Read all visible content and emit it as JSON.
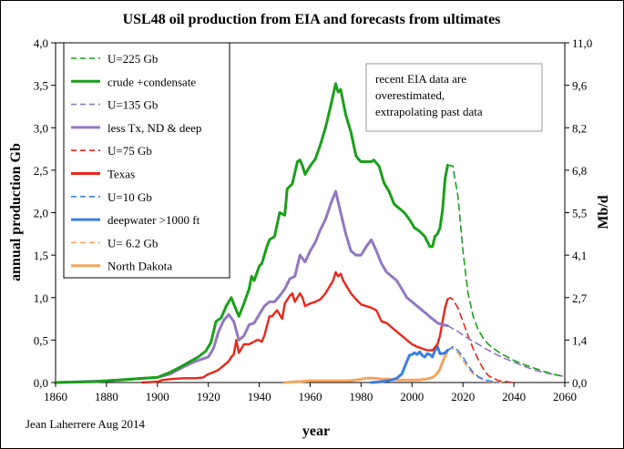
{
  "chart_data": {
    "type": "line",
    "title": "USL48 oil production from EIA and forecasts from ultimates",
    "xlabel": "year",
    "ylabel": "annual production Gb",
    "y2label": "Mb/d",
    "xlim": [
      1860,
      2060
    ],
    "ylim": [
      0,
      4
    ],
    "y2lim": [
      0,
      11
    ],
    "x_ticks": [
      "1860",
      "1880",
      "1900",
      "1920",
      "1940",
      "1960",
      "1980",
      "2000",
      "2020",
      "2040",
      "2060"
    ],
    "y_ticks": [
      "0,0",
      "0,5",
      "1,0",
      "1,5",
      "2,0",
      "2,5",
      "3,0",
      "3,5",
      "4,0"
    ],
    "y2_ticks": [
      "0,0",
      "1,4",
      "2,7",
      "4,1",
      "5,5",
      "6,8",
      "8,2",
      "9,6",
      "11,0"
    ],
    "grid": false,
    "legend_position": "top-left",
    "note": [
      "recent EIA data are",
      "overestimated,",
      "extrapolating past data"
    ],
    "credit": "Jean Laherrere Aug 2014",
    "series": [
      {
        "name": "crude +condensate",
        "color": "#1aa01a",
        "style": "solid",
        "width": 3,
        "x": [
          1860,
          1875,
          1880,
          1885,
          1890,
          1895,
          1900,
          1905,
          1910,
          1913,
          1916,
          1919,
          1921,
          1923,
          1925,
          1927,
          1929,
          1931,
          1932,
          1934,
          1936,
          1937,
          1938,
          1940,
          1941,
          1943,
          1944,
          1945,
          1946,
          1948,
          1950,
          1951,
          1953,
          1955,
          1956,
          1957,
          1958,
          1960,
          1962,
          1964,
          1966,
          1968,
          1970,
          1971,
          1972,
          1974,
          1976,
          1978,
          1979,
          1980,
          1982,
          1984,
          1985,
          1987,
          1989,
          1991,
          1993,
          1995,
          1997,
          1999,
          2001,
          2003,
          2005,
          2007,
          2008,
          2009,
          2010,
          2011,
          2012,
          2013,
          2014
        ],
        "y": [
          0,
          0.01,
          0.02,
          0.03,
          0.04,
          0.05,
          0.06,
          0.12,
          0.2,
          0.25,
          0.3,
          0.37,
          0.47,
          0.72,
          0.76,
          0.9,
          1.0,
          0.85,
          0.78,
          0.93,
          1.1,
          1.25,
          1.2,
          1.37,
          1.4,
          1.6,
          1.68,
          1.7,
          1.72,
          2.0,
          1.97,
          2.28,
          2.34,
          2.6,
          2.62,
          2.55,
          2.45,
          2.55,
          2.63,
          2.8,
          3.0,
          3.25,
          3.52,
          3.42,
          3.45,
          3.15,
          2.95,
          2.67,
          2.63,
          2.6,
          2.6,
          2.6,
          2.62,
          2.55,
          2.35,
          2.25,
          2.1,
          2.05,
          2.0,
          1.92,
          1.82,
          1.78,
          1.72,
          1.6,
          1.6,
          1.72,
          1.75,
          1.82,
          2.03,
          2.4,
          2.56
        ]
      },
      {
        "name": "U=225 Gb",
        "color": "#1aa01a",
        "style": "dashed",
        "width": 1.6,
        "x": [
          2014,
          2016,
          2018,
          2020,
          2022,
          2024,
          2026,
          2028,
          2030,
          2032,
          2035,
          2040,
          2045,
          2050,
          2055,
          2060
        ],
        "y": [
          2.56,
          2.55,
          2.2,
          1.55,
          1.05,
          0.78,
          0.62,
          0.52,
          0.45,
          0.4,
          0.34,
          0.26,
          0.2,
          0.15,
          0.1,
          0.07
        ]
      },
      {
        "name": "less Tx, ND & deep",
        "color": "#9178c0",
        "style": "solid",
        "width": 3,
        "x": [
          1860,
          1880,
          1890,
          1900,
          1905,
          1910,
          1915,
          1920,
          1922,
          1924,
          1926,
          1928,
          1930,
          1932,
          1934,
          1936,
          1938,
          1940,
          1942,
          1944,
          1946,
          1948,
          1950,
          1952,
          1954,
          1956,
          1958,
          1960,
          1962,
          1964,
          1966,
          1968,
          1970,
          1972,
          1974,
          1976,
          1978,
          1980,
          1982,
          1984,
          1986,
          1988,
          1990,
          1992,
          1994,
          1996,
          1998,
          2000,
          2002,
          2004,
          2006,
          2008,
          2010,
          2012,
          2014
        ],
        "y": [
          0,
          0.02,
          0.04,
          0.06,
          0.1,
          0.18,
          0.25,
          0.3,
          0.4,
          0.6,
          0.73,
          0.8,
          0.72,
          0.5,
          0.55,
          0.68,
          0.7,
          0.8,
          0.9,
          0.95,
          0.95,
          1.02,
          1.1,
          1.22,
          1.25,
          1.5,
          1.42,
          1.55,
          1.65,
          1.8,
          1.92,
          2.1,
          2.25,
          2.0,
          1.75,
          1.55,
          1.5,
          1.5,
          1.6,
          1.68,
          1.55,
          1.4,
          1.3,
          1.25,
          1.2,
          1.1,
          1.0,
          0.95,
          0.9,
          0.85,
          0.8,
          0.75,
          0.7,
          0.68,
          0.67
        ]
      },
      {
        "name": "U=135 Gb",
        "color": "#9178c0",
        "style": "dashed",
        "width": 1.6,
        "x": [
          2014,
          2018,
          2022,
          2026,
          2030,
          2035,
          2040,
          2045,
          2050,
          2055,
          2060
        ],
        "y": [
          0.67,
          0.6,
          0.52,
          0.45,
          0.38,
          0.3,
          0.24,
          0.18,
          0.13,
          0.1,
          0.07
        ]
      },
      {
        "name": "Texas",
        "color": "#e8261a",
        "style": "solid",
        "width": 2.4,
        "x": [
          1894,
          1900,
          1902,
          1905,
          1910,
          1915,
          1918,
          1920,
          1922,
          1924,
          1926,
          1928,
          1929,
          1930,
          1931,
          1932,
          1933,
          1934,
          1936,
          1938,
          1939,
          1940,
          1941,
          1942,
          1944,
          1945,
          1947,
          1949,
          1950,
          1952,
          1953,
          1954,
          1955,
          1956,
          1957,
          1958,
          1960,
          1962,
          1964,
          1966,
          1968,
          1969,
          1970,
          1971,
          1972,
          1973,
          1974,
          1976,
          1978,
          1980,
          1982,
          1984,
          1986,
          1988,
          1990,
          1992,
          1994,
          1996,
          1998,
          2000,
          2002,
          2004,
          2006,
          2008,
          2010,
          2011,
          2012,
          2013,
          2014
        ],
        "y": [
          0,
          0.01,
          0.03,
          0.04,
          0.05,
          0.05,
          0.06,
          0.1,
          0.12,
          0.15,
          0.2,
          0.25,
          0.3,
          0.33,
          0.5,
          0.35,
          0.4,
          0.45,
          0.45,
          0.48,
          0.5,
          0.5,
          0.48,
          0.55,
          0.78,
          0.78,
          0.85,
          0.75,
          0.93,
          1.02,
          1.05,
          0.95,
          1.0,
          1.05,
          1.0,
          0.9,
          0.93,
          0.95,
          0.98,
          1.05,
          1.15,
          1.2,
          1.3,
          1.25,
          1.28,
          1.2,
          1.15,
          1.05,
          0.98,
          0.92,
          0.9,
          0.88,
          0.85,
          0.72,
          0.7,
          0.65,
          0.6,
          0.55,
          0.5,
          0.45,
          0.42,
          0.4,
          0.38,
          0.38,
          0.45,
          0.55,
          0.72,
          0.88,
          0.98
        ]
      },
      {
        "name": "U=75 Gb",
        "color": "#e8261a",
        "style": "dashed",
        "width": 1.6,
        "x": [
          2014,
          2015,
          2016,
          2018,
          2020,
          2022,
          2024,
          2026,
          2028,
          2030,
          2034,
          2040
        ],
        "y": [
          0.98,
          1.0,
          0.98,
          0.88,
          0.72,
          0.55,
          0.4,
          0.27,
          0.16,
          0.08,
          0.02,
          0
        ]
      },
      {
        "name": "deepwater >1000 ft",
        "color": "#3a7ee6",
        "style": "solid",
        "width": 3,
        "x": [
          1984,
          1988,
          1990,
          1992,
          1994,
          1996,
          1998,
          1999,
          2000,
          2001,
          2002,
          2003,
          2004,
          2005,
          2006,
          2007,
          2008,
          2009,
          2010,
          2011,
          2012,
          2013,
          2014
        ],
        "y": [
          0,
          0.01,
          0.02,
          0.03,
          0.05,
          0.1,
          0.25,
          0.32,
          0.33,
          0.35,
          0.33,
          0.36,
          0.32,
          0.3,
          0.34,
          0.33,
          0.3,
          0.38,
          0.42,
          0.34,
          0.34,
          0.35,
          0.38
        ]
      },
      {
        "name": "U=10 Gb",
        "color": "#3a7ee6",
        "style": "dashed",
        "width": 1.6,
        "x": [
          2014,
          2016,
          2018,
          2020,
          2022,
          2024,
          2026,
          2028,
          2030,
          2034
        ],
        "y": [
          0.38,
          0.42,
          0.38,
          0.3,
          0.2,
          0.12,
          0.07,
          0.04,
          0.02,
          0
        ]
      },
      {
        "name": "North Dakota",
        "color": "#f4a45e",
        "style": "solid",
        "width": 3,
        "x": [
          1950,
          1955,
          1960,
          1965,
          1970,
          1975,
          1978,
          1980,
          1982,
          1985,
          1988,
          1990,
          1995,
          2000,
          2003,
          2005,
          2007,
          2008,
          2009,
          2010,
          2011,
          2012,
          2013,
          2014
        ],
        "y": [
          0,
          0.01,
          0.02,
          0.02,
          0.02,
          0.02,
          0.03,
          0.04,
          0.05,
          0.05,
          0.04,
          0.04,
          0.03,
          0.03,
          0.03,
          0.04,
          0.05,
          0.06,
          0.08,
          0.11,
          0.16,
          0.24,
          0.31,
          0.38
        ]
      },
      {
        "name": "U= 6.2 Gb",
        "color": "#f4a45e",
        "style": "dashed",
        "width": 1.6,
        "x": [
          2014,
          2015,
          2016,
          2018,
          2020,
          2022,
          2024,
          2026,
          2028,
          2030,
          2035
        ],
        "y": [
          0.38,
          0.4,
          0.4,
          0.35,
          0.26,
          0.17,
          0.1,
          0.06,
          0.03,
          0.01,
          0
        ]
      }
    ],
    "legend_order": [
      "U=225 Gb",
      "crude +condensate",
      "U=135 Gb",
      "less Tx, ND & deep",
      "U=75 Gb",
      "Texas",
      "U=10 Gb",
      "deepwater >1000 ft",
      "U= 6.2 Gb",
      "North Dakota"
    ]
  }
}
